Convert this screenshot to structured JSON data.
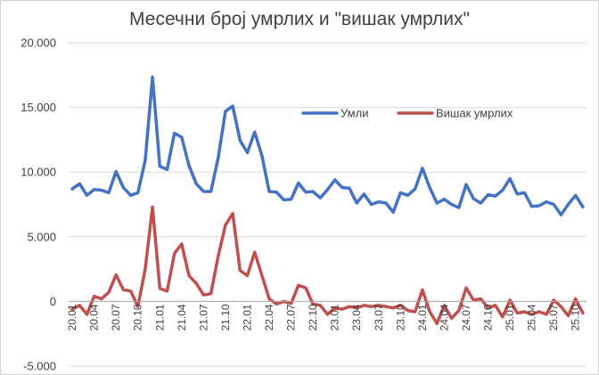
{
  "chart_data": {
    "type": "line",
    "title": "Месечни број умрлих и \"вишак умрлих\"",
    "xlabel": "",
    "ylabel": "",
    "ylim": [
      -5000,
      20000
    ],
    "y_ticks": [
      -5000,
      0,
      5000,
      10000,
      15000,
      20000
    ],
    "y_tick_labels": [
      "-5.000",
      "0",
      "5.000",
      "10.000",
      "15.000",
      "20.000"
    ],
    "x_ticks": [
      "20.01",
      "20.04",
      "20.07",
      "20.10",
      "21.01",
      "21.04",
      "21.07",
      "21.10",
      "22.01",
      "22.04",
      "22.07",
      "22.10",
      "23.01",
      "23.04",
      "23.07",
      "23.10",
      "24.01",
      "24.04",
      "24.07",
      "24.10",
      "25.01",
      "25.04",
      "25.07",
      "25.10"
    ],
    "grid": true,
    "legend": "top-right",
    "x": [
      "20.01",
      "20.02",
      "20.03",
      "20.04",
      "20.05",
      "20.06",
      "20.07",
      "20.08",
      "20.09",
      "20.10",
      "20.11",
      "20.12",
      "21.01",
      "21.02",
      "21.03",
      "21.04",
      "21.05",
      "21.06",
      "21.07",
      "21.08",
      "21.09",
      "21.10",
      "21.11",
      "21.12",
      "22.01",
      "22.02",
      "22.03",
      "22.04",
      "22.05",
      "22.06",
      "22.07",
      "22.08",
      "22.09",
      "22.10",
      "22.11",
      "22.12",
      "23.01",
      "23.02",
      "23.03",
      "23.04",
      "23.05",
      "23.06",
      "23.07",
      "23.08",
      "23.09",
      "23.10",
      "23.11",
      "23.12",
      "24.01",
      "24.02",
      "24.03",
      "24.04",
      "24.05",
      "24.06",
      "24.07",
      "24.08",
      "24.09",
      "24.10",
      "24.11",
      "24.12",
      "25.01",
      "25.02",
      "25.03",
      "25.04",
      "25.05",
      "25.06",
      "25.07",
      "25.08",
      "25.09",
      "25.10",
      "25.11"
    ],
    "series": [
      {
        "name": "Умли",
        "color": "#4472c4",
        "values": [
          8700,
          9100,
          8200,
          8650,
          8600,
          8400,
          10050,
          8800,
          8200,
          8400,
          10900,
          17350,
          10450,
          10200,
          13000,
          12700,
          10500,
          9100,
          8500,
          8500,
          11100,
          14700,
          15100,
          12450,
          11500,
          13100,
          11250,
          8500,
          8450,
          7850,
          7900,
          9150,
          8450,
          8500,
          8000,
          8650,
          9400,
          8800,
          8750,
          7600,
          8300,
          7500,
          7700,
          7600,
          6900,
          8400,
          8200,
          8700,
          10300,
          8800,
          7600,
          7900,
          7500,
          7250,
          9050,
          7950,
          7600,
          8250,
          8150,
          8600,
          9500,
          8300,
          8400,
          7350,
          7400,
          7700,
          7500,
          6700,
          7500,
          8200,
          7300
        ]
      },
      {
        "name": "Вишак умрлих",
        "color": "#c0504d",
        "values": [
          -600,
          -300,
          -1000,
          400,
          200,
          700,
          2050,
          900,
          800,
          -400,
          2500,
          7300,
          1000,
          800,
          3700,
          4450,
          2000,
          1400,
          500,
          600,
          3500,
          5900,
          6800,
          2400,
          2000,
          3800,
          2000,
          200,
          -200,
          0,
          -150,
          1250,
          1050,
          -200,
          -300,
          -1000,
          -500,
          -600,
          -400,
          -500,
          -300,
          -400,
          -300,
          -400,
          -500,
          -300,
          -700,
          -800,
          900,
          -800,
          -1700,
          -300,
          -1300,
          -700,
          1050,
          100,
          200,
          -500,
          -300,
          -1200,
          100,
          -900,
          -800,
          -1000,
          -800,
          -1000,
          100,
          -400,
          -1100,
          200,
          -900
        ]
      }
    ]
  }
}
